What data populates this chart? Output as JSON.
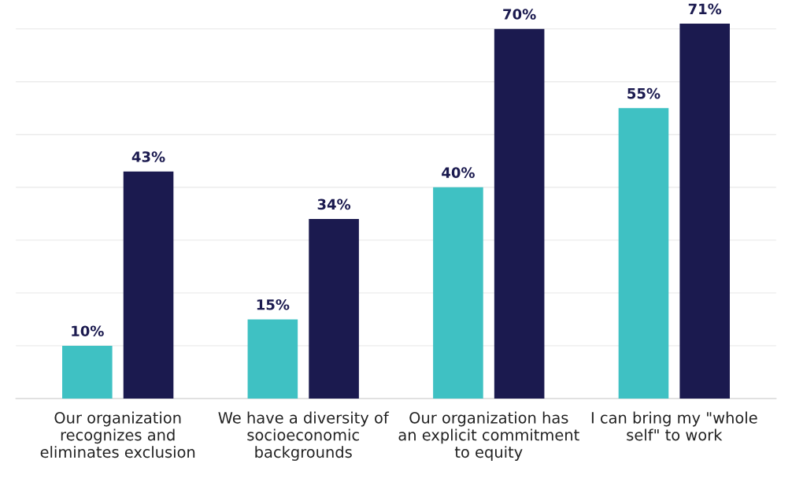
{
  "chart_data": {
    "type": "bar",
    "categories": [
      "Our organization\nrecognizes and\neliminates exclusion",
      "We have a diversity of\nsocioeconomic\nbackgrounds",
      "Our organization has\nan explicit commitment\nto equity",
      "I can bring my \"whole\nself\" to work"
    ],
    "series": [
      {
        "color": "#3fc1c3",
        "values": [
          10,
          15,
          40,
          55
        ],
        "value_labels": [
          "10%",
          "15%",
          "40%",
          "55%"
        ]
      },
      {
        "color": "#1b1a4f",
        "values": [
          43,
          34,
          70,
          71
        ],
        "value_labels": [
          "43%",
          "34%",
          "70%",
          "71%"
        ]
      }
    ],
    "tick_labels": "x",
    "grid": "y"
  }
}
